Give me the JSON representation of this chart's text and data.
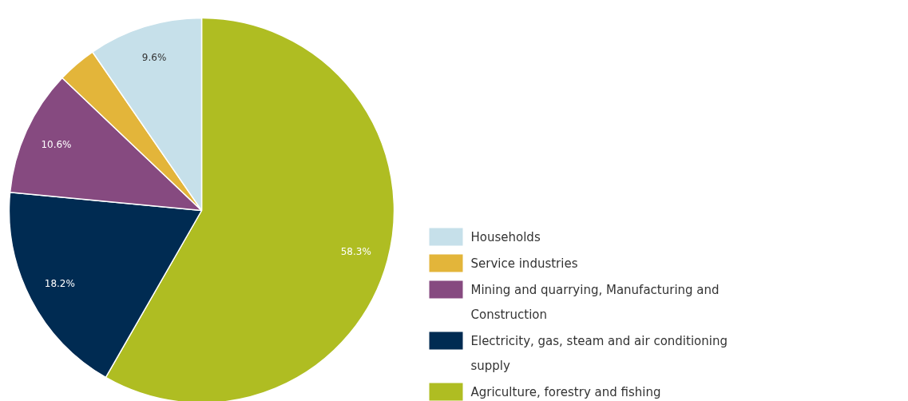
{
  "chart_data": {
    "type": "pie",
    "categories": [
      "Agriculture, forestry and fishing",
      "Electricity, gas, steam and air conditioning supply",
      "Mining and quarrying, Manufacturing and Construction",
      "Service industries",
      "Households"
    ],
    "values": [
      58.3,
      18.2,
      10.6,
      3.3,
      9.6
    ],
    "colors": [
      "#afbd22",
      "#002b52",
      "#864a80",
      "#e3b53a",
      "#c6e0ea"
    ],
    "value_labels": [
      "58.3%",
      "18.2%",
      "10.6%",
      null,
      "9.6%"
    ],
    "legend": "bottom right"
  }
}
